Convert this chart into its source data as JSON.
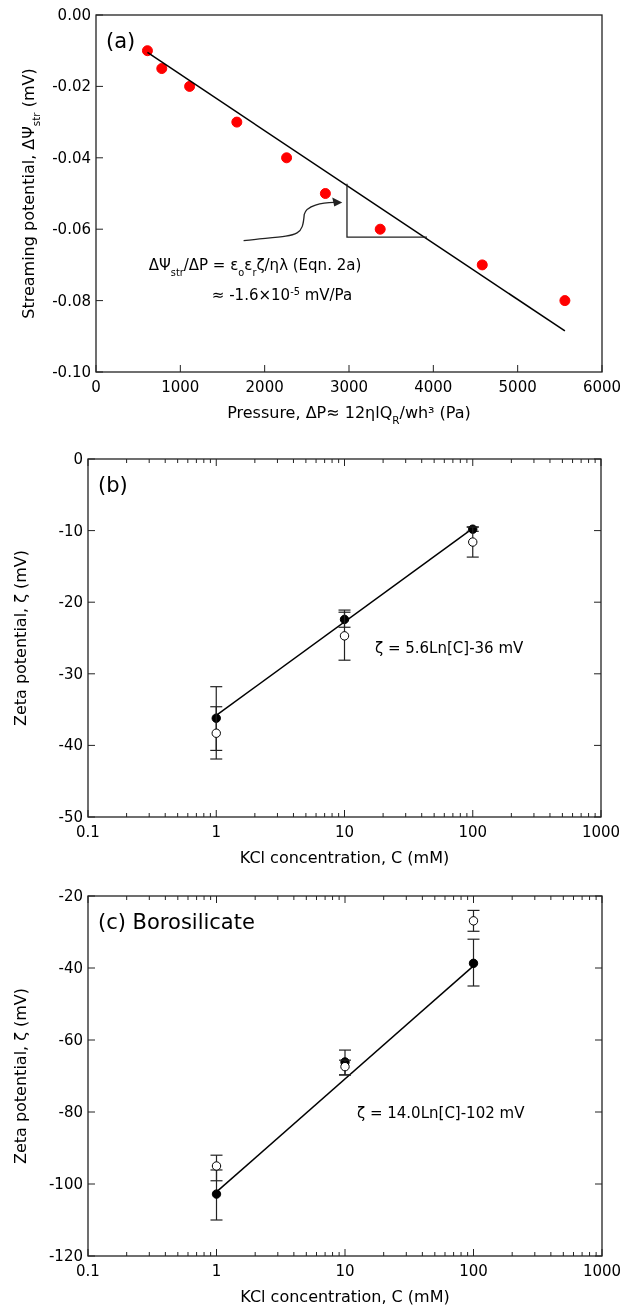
{
  "chart_data": [
    {
      "type": "scatter",
      "title": "(a)",
      "xlabel": "Pressure, ΔP≈ 12ηlQ$_{R}$/wh³ (Pa)",
      "ylabel": "Streaming potential, ΔΨ$_{str}$ (mV)",
      "xlim": [
        0,
        6000
      ],
      "xticks": [
        0,
        1000,
        2000,
        3000,
        4000,
        5000,
        6000
      ],
      "ylim": [
        -0.1,
        0
      ],
      "yticks": [
        {
          "value": -0.1,
          "label": "-0.10"
        },
        -0.08,
        -0.06,
        -0.04,
        -0.02,
        {
          "value": 0,
          "label": "0.00"
        }
      ],
      "grid": false,
      "series": [
        {
          "type": "scatter",
          "color": "#ff0000",
          "marker": "circle",
          "x": [
            610,
            780,
            1110,
            1670,
            2260,
            2720,
            3370,
            4580,
            5560
          ],
          "values": [
            -0.01,
            -0.015,
            -0.02,
            -0.03,
            -0.04,
            -0.05,
            -0.06,
            -0.07,
            -0.08
          ]
        },
        {
          "type": "line",
          "color": "#000000",
          "marker": "none",
          "x": [
            610,
            5560
          ],
          "values": [
            -0.0105,
            -0.0885
          ]
        }
      ],
      "annotations": [
        "ΔΨ$_{str}$/ΔP = ε$_{o}$ε$_{r}$ζ/ηλ (Eqn. 2a)",
        "≈ -1.6×10$^{-5}$ mV/Pa"
      ]
    },
    {
      "type": "scatter",
      "title": "(b)",
      "xlabel": "KCl concentration, C (mM)",
      "ylabel": "Zeta potential, ζ (mV)",
      "log": "x",
      "xlim": [
        0.1,
        1000
      ],
      "xticks": [
        0.1,
        {
          "value": 0.2,
          "label": null
        },
        {
          "value": 0.3,
          "label": null
        },
        {
          "value": 0.4,
          "label": null
        },
        {
          "value": 0.5,
          "label": null
        },
        {
          "value": 0.6,
          "label": null
        },
        {
          "value": 0.7,
          "label": null
        },
        {
          "value": 0.8,
          "label": null
        },
        {
          "value": 0.9,
          "label": null
        },
        1,
        {
          "value": 2,
          "label": null
        },
        {
          "value": 3,
          "label": null
        },
        {
          "value": 4,
          "label": null
        },
        {
          "value": 5,
          "label": null
        },
        {
          "value": 6,
          "label": null
        },
        {
          "value": 7,
          "label": null
        },
        {
          "value": 8,
          "label": null
        },
        {
          "value": 9,
          "label": null
        },
        10,
        {
          "value": 20,
          "label": null
        },
        {
          "value": 30,
          "label": null
        },
        {
          "value": 40,
          "label": null
        },
        {
          "value": 50,
          "label": null
        },
        {
          "value": 60,
          "label": null
        },
        {
          "value": 70,
          "label": null
        },
        {
          "value": 80,
          "label": null
        },
        {
          "value": 90,
          "label": null
        },
        100,
        {
          "value": 200,
          "label": null
        },
        {
          "value": 300,
          "label": null
        },
        {
          "value": 400,
          "label": null
        },
        {
          "value": 500,
          "label": null
        },
        {
          "value": 600,
          "label": null
        },
        {
          "value": 700,
          "label": null
        },
        {
          "value": 800,
          "label": null
        },
        {
          "value": 900,
          "label": null
        },
        1000
      ],
      "ylim": [
        -50,
        0
      ],
      "yticks": [
        -50,
        -40,
        -30,
        -20,
        -10,
        0
      ],
      "grid": false,
      "series": [
        {
          "type": "line",
          "color": "#000000",
          "marker": "none",
          "x": [
            1,
            100
          ],
          "values": [
            -35.8,
            -9.7
          ]
        },
        {
          "type": "scatter",
          "color": "#000000",
          "marker": "circle",
          "x": [
            1,
            10,
            100
          ],
          "values": [
            -36.2,
            -22.4,
            -9.8
          ],
          "errors": [
            [
              -40.7,
              -31.8
            ],
            [
              -23.5,
              -21.1
            ],
            [
              -10.1,
              -9.5
            ]
          ]
        },
        {
          "type": "scatter",
          "color": "#ffffff",
          "marker": "circle",
          "x": [
            1,
            10,
            100
          ],
          "values": [
            -38.3,
            -24.7,
            -11.6
          ],
          "errors": [
            [
              -41.9,
              -34.6
            ],
            [
              -28.1,
              -21.4
            ],
            [
              -13.7,
              -9.5
            ]
          ]
        }
      ],
      "annotations": [
        "ζ = 5.6Ln[C]-36 mV"
      ]
    },
    {
      "type": "scatter",
      "title": "(c) Borosilicate",
      "xlabel": "KCl concentration, C (mM)",
      "ylabel": "Zeta potential, ζ (mV)",
      "log": "x",
      "xlim": [
        0.1,
        1000
      ],
      "xticks": [
        0.1,
        {
          "value": 0.2,
          "label": null
        },
        {
          "value": 0.3,
          "label": null
        },
        {
          "value": 0.4,
          "label": null
        },
        {
          "value": 0.5,
          "label": null
        },
        {
          "value": 0.6,
          "label": null
        },
        {
          "value": 0.7,
          "label": null
        },
        {
          "value": 0.8,
          "label": null
        },
        {
          "value": 0.9,
          "label": null
        },
        1,
        {
          "value": 2,
          "label": null
        },
        {
          "value": 3,
          "label": null
        },
        {
          "value": 4,
          "label": null
        },
        {
          "value": 5,
          "label": null
        },
        {
          "value": 6,
          "label": null
        },
        {
          "value": 7,
          "label": null
        },
        {
          "value": 8,
          "label": null
        },
        {
          "value": 9,
          "label": null
        },
        10,
        {
          "value": 20,
          "label": null
        },
        {
          "value": 30,
          "label": null
        },
        {
          "value": 40,
          "label": null
        },
        {
          "value": 50,
          "label": null
        },
        {
          "value": 60,
          "label": null
        },
        {
          "value": 70,
          "label": null
        },
        {
          "value": 80,
          "label": null
        },
        {
          "value": 90,
          "label": null
        },
        100,
        {
          "value": 200,
          "label": null
        },
        {
          "value": 300,
          "label": null
        },
        {
          "value": 400,
          "label": null
        },
        {
          "value": 500,
          "label": null
        },
        {
          "value": 600,
          "label": null
        },
        {
          "value": 700,
          "label": null
        },
        {
          "value": 800,
          "label": null
        },
        {
          "value": 900,
          "label": null
        },
        1000
      ],
      "ylim": [
        -120,
        -20
      ],
      "yticks": [
        -120,
        -100,
        -80,
        -60,
        -40,
        -20
      ],
      "grid": false,
      "series": [
        {
          "type": "line",
          "color": "#000000",
          "marker": "none",
          "x": [
            1,
            100
          ],
          "values": [
            -102.2,
            -39.4
          ]
        },
        {
          "type": "scatter",
          "color": "#000000",
          "marker": "circle",
          "x": [
            1,
            10,
            100
          ],
          "values": [
            -102.8,
            -66.1,
            -38.7
          ],
          "errors": [
            [
              -110,
              -96.1
            ],
            [
              -69.7,
              -62.8
            ],
            [
              -45,
              -32
            ]
          ]
        },
        {
          "type": "scatter",
          "color": "#ffffff",
          "marker": "circle",
          "x": [
            1,
            10,
            100
          ],
          "values": [
            -95,
            -67.4,
            -26.9
          ],
          "errors": [
            [
              -99.1,
              -92
            ],
            [
              -69.7,
              -65.6
            ],
            [
              -29.8,
              -24
            ]
          ]
        }
      ],
      "annotations": [
        "ζ = 14.0Ln[C]-102 mV"
      ]
    }
  ]
}
